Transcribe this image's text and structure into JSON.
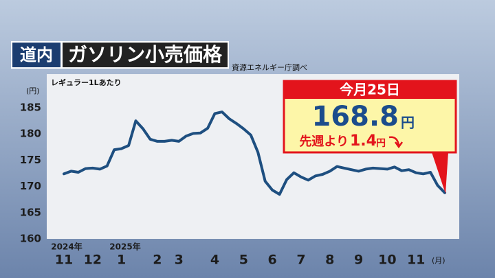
{
  "chart_data": {
    "type": "line",
    "region": "道内",
    "title": "ガソリン小売価格",
    "source": "資源エネルギー庁調べ",
    "note": "レギュラー1Lあたり",
    "y_unit": "(円)",
    "x_unit": "(月)",
    "x_group_labels": [
      "2024年",
      "2025年"
    ],
    "categories": [
      "11",
      null,
      null,
      null,
      "12",
      null,
      null,
      null,
      "1",
      null,
      null,
      null,
      null,
      "2",
      null,
      null,
      "3",
      null,
      null,
      null,
      null,
      "4",
      null,
      null,
      null,
      "5",
      null,
      null,
      null,
      "6",
      null,
      null,
      null,
      "7",
      null,
      null,
      null,
      "8",
      null,
      null,
      null,
      "9",
      null,
      null,
      null,
      "10",
      null,
      null,
      null,
      "11",
      null,
      null,
      null,
      null
    ],
    "series": [
      {
        "color": "#1e4f80",
        "values": [
          172.4,
          172.9,
          172.7,
          173.4,
          173.5,
          173.3,
          173.9,
          177.0,
          177.2,
          177.8,
          182.5,
          181.0,
          179.0,
          178.6,
          178.6,
          178.8,
          178.6,
          179.6,
          180.1,
          180.2,
          181.1,
          183.9,
          184.2,
          182.9,
          182.0,
          181.0,
          179.8,
          176.5,
          171.0,
          169.3,
          168.5,
          171.3,
          172.6,
          171.8,
          171.2,
          172.0,
          172.3,
          172.9,
          173.8,
          173.5,
          173.2,
          172.9,
          173.3,
          173.5,
          173.4,
          173.3,
          173.7,
          173.0,
          173.2,
          172.6,
          172.4,
          172.7,
          170.2,
          168.8
        ]
      }
    ],
    "ylim": [
      160,
      185
    ],
    "yticks": [
      160,
      165,
      170,
      175,
      180,
      185
    ],
    "grid": false,
    "callout": {
      "date": "今月25日",
      "value": 168.8,
      "unit": "円",
      "change_prefix": "先週より",
      "change": 1.4,
      "change_unit": "円"
    }
  }
}
